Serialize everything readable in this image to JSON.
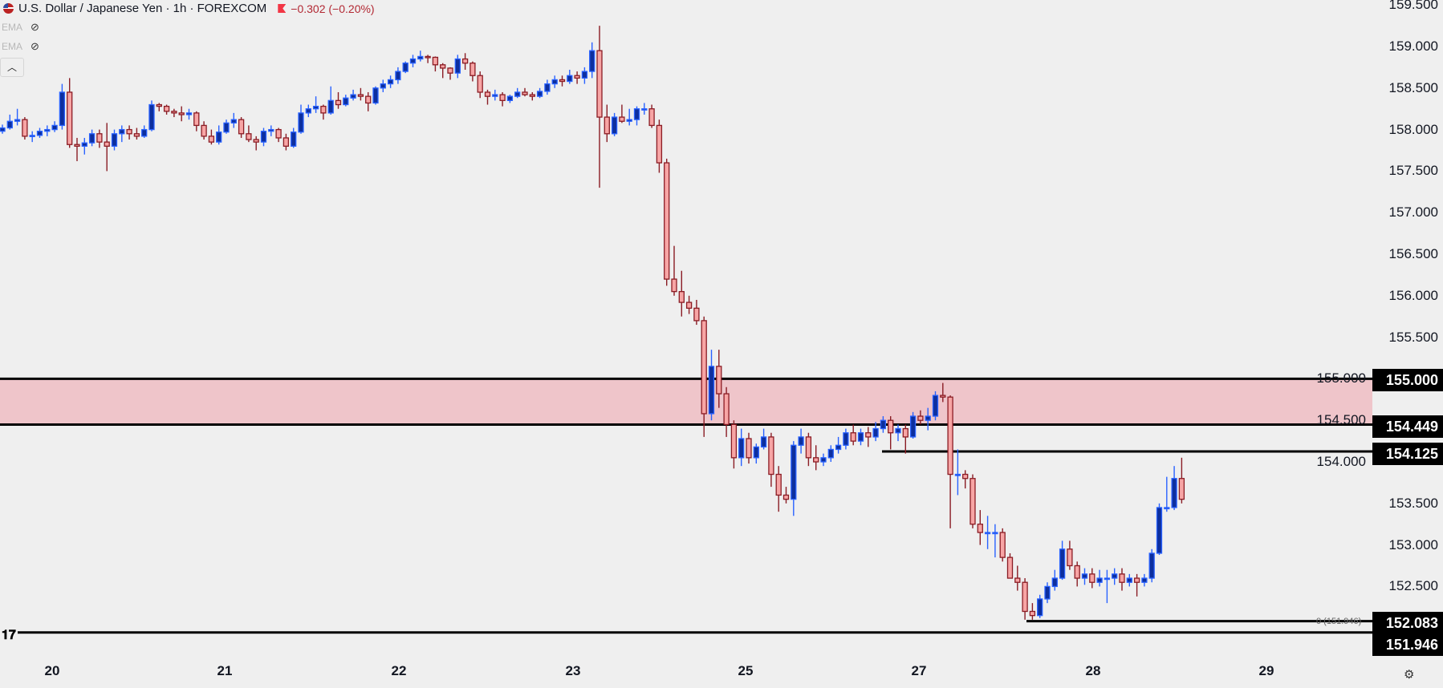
{
  "header": {
    "title": "U.S. Dollar / Japanese Yen · 1h · FOREXCOM",
    "change": "−0.302 (−0.20%)",
    "indicators": [
      {
        "label": "EMA",
        "icon": "eye-off-icon"
      },
      {
        "label": "EMA",
        "icon": "eye-off-icon"
      }
    ],
    "collapse_icon": "chevron-up-icon"
  },
  "colors": {
    "up_fill": "#0d2f9e",
    "up_border": "#2962ff",
    "down_fill": "#f7a5a5",
    "down_border": "#8a1c24",
    "zone": "#efc5ca",
    "background": "#efefef"
  },
  "chart_data": {
    "type": "candlestick",
    "symbol": "USDJPY",
    "timeframe": "1h",
    "ylim": [
      151.9,
      159.6
    ],
    "y_ticks": [
      "159.500",
      "159.000",
      "158.500",
      "158.000",
      "157.500",
      "157.000",
      "156.500",
      "156.000",
      "155.500",
      "155.000",
      "154.500",
      "154.000",
      "153.500",
      "153.000",
      "152.500"
    ],
    "x_ticks": [
      "20",
      "21",
      "22",
      "23",
      "25",
      "27",
      "28",
      "29"
    ],
    "zone": {
      "from": 154.449,
      "to": 155.0
    },
    "levels": [
      {
        "label": "155.000",
        "value": 155.0
      },
      {
        "label": "154.449",
        "value": 154.449
      },
      {
        "label": "154.125",
        "value": 154.125
      },
      {
        "label": "152.083",
        "value": 152.083
      },
      {
        "label": "151.946",
        "value": 151.946
      }
    ],
    "fib_label": "0 (151.946)",
    "ohlc": [
      [
        157.98,
        158.06,
        157.95,
        158.02
      ],
      [
        158.02,
        158.18,
        158.0,
        158.1
      ],
      [
        158.1,
        158.25,
        158.05,
        158.12
      ],
      [
        158.12,
        158.15,
        157.88,
        157.92
      ],
      [
        157.92,
        157.98,
        157.85,
        157.93
      ],
      [
        157.93,
        158.02,
        157.9,
        157.98
      ],
      [
        157.98,
        158.05,
        157.92,
        158.0
      ],
      [
        158.0,
        158.1,
        157.97,
        158.05
      ],
      [
        158.05,
        158.55,
        158.0,
        158.45
      ],
      [
        158.45,
        158.62,
        157.78,
        157.82
      ],
      [
        157.82,
        157.9,
        157.62,
        157.8
      ],
      [
        157.8,
        157.9,
        157.7,
        157.84
      ],
      [
        157.84,
        158.0,
        157.8,
        157.95
      ],
      [
        157.95,
        158.0,
        157.78,
        157.85
      ],
      [
        157.85,
        158.08,
        157.5,
        157.8
      ],
      [
        157.8,
        158.0,
        157.75,
        157.95
      ],
      [
        157.95,
        158.05,
        157.85,
        158.0
      ],
      [
        158.0,
        158.05,
        157.88,
        157.95
      ],
      [
        157.95,
        158.02,
        157.88,
        157.92
      ],
      [
        157.92,
        158.05,
        157.9,
        158.0
      ],
      [
        158.0,
        158.35,
        157.98,
        158.3
      ],
      [
        158.3,
        158.32,
        158.22,
        158.28
      ],
      [
        158.28,
        158.3,
        158.18,
        158.22
      ],
      [
        158.22,
        158.25,
        158.15,
        158.2
      ],
      [
        158.2,
        158.28,
        158.1,
        158.18
      ],
      [
        158.18,
        158.25,
        158.12,
        158.2
      ],
      [
        158.2,
        158.22,
        157.98,
        158.05
      ],
      [
        158.05,
        158.1,
        157.88,
        157.92
      ],
      [
        157.92,
        158.0,
        157.82,
        157.85
      ],
      [
        157.85,
        158.05,
        157.82,
        157.97
      ],
      [
        157.97,
        158.12,
        157.95,
        158.08
      ],
      [
        158.08,
        158.2,
        158.02,
        158.12
      ],
      [
        158.12,
        158.15,
        157.9,
        157.95
      ],
      [
        157.95,
        158.05,
        157.85,
        157.88
      ],
      [
        157.88,
        157.92,
        157.75,
        157.85
      ],
      [
        157.85,
        158.02,
        157.8,
        157.98
      ],
      [
        157.98,
        158.05,
        157.92,
        158.0
      ],
      [
        158.0,
        158.02,
        157.85,
        157.9
      ],
      [
        157.9,
        157.95,
        157.75,
        157.8
      ],
      [
        157.8,
        158.02,
        157.78,
        157.97
      ],
      [
        157.97,
        158.3,
        157.95,
        158.2
      ],
      [
        158.2,
        158.3,
        158.15,
        158.25
      ],
      [
        158.25,
        158.4,
        158.2,
        158.28
      ],
      [
        158.28,
        158.3,
        158.12,
        158.2
      ],
      [
        158.2,
        158.52,
        158.18,
        158.35
      ],
      [
        158.35,
        158.45,
        158.25,
        158.3
      ],
      [
        158.3,
        158.42,
        158.28,
        158.38
      ],
      [
        158.38,
        158.48,
        158.35,
        158.42
      ],
      [
        158.42,
        158.5,
        158.35,
        158.4
      ],
      [
        158.4,
        158.45,
        158.22,
        158.32
      ],
      [
        158.32,
        158.52,
        158.3,
        158.5
      ],
      [
        158.5,
        158.6,
        158.45,
        158.55
      ],
      [
        158.55,
        158.65,
        158.5,
        158.6
      ],
      [
        158.6,
        158.75,
        158.55,
        158.7
      ],
      [
        158.7,
        158.82,
        158.68,
        158.8
      ],
      [
        158.8,
        158.9,
        158.75,
        158.85
      ],
      [
        158.85,
        158.95,
        158.82,
        158.88
      ],
      [
        158.88,
        158.9,
        158.8,
        158.87
      ],
      [
        158.87,
        158.88,
        158.7,
        158.78
      ],
      [
        158.78,
        158.8,
        158.62,
        158.74
      ],
      [
        158.74,
        158.75,
        158.6,
        158.68
      ],
      [
        158.68,
        158.9,
        158.62,
        158.85
      ],
      [
        158.85,
        158.92,
        158.72,
        158.8
      ],
      [
        158.8,
        158.82,
        158.58,
        158.65
      ],
      [
        158.65,
        158.7,
        158.38,
        158.45
      ],
      [
        158.45,
        158.48,
        158.3,
        158.4
      ],
      [
        158.4,
        158.48,
        158.35,
        158.42
      ],
      [
        158.42,
        158.45,
        158.28,
        158.35
      ],
      [
        158.35,
        158.42,
        158.32,
        158.4
      ],
      [
        158.4,
        158.5,
        158.38,
        158.45
      ],
      [
        158.45,
        158.5,
        158.4,
        158.42
      ],
      [
        158.42,
        158.45,
        158.35,
        158.4
      ],
      [
        158.4,
        158.5,
        158.38,
        158.46
      ],
      [
        158.46,
        158.6,
        158.42,
        158.55
      ],
      [
        158.55,
        158.65,
        158.5,
        158.6
      ],
      [
        158.6,
        158.65,
        158.52,
        158.58
      ],
      [
        158.58,
        158.72,
        158.55,
        158.65
      ],
      [
        158.65,
        158.7,
        158.55,
        158.62
      ],
      [
        158.62,
        158.75,
        158.55,
        158.7
      ],
      [
        158.7,
        159.05,
        158.62,
        158.95
      ],
      [
        158.95,
        159.25,
        157.3,
        158.15
      ],
      [
        158.15,
        158.3,
        157.85,
        157.95
      ],
      [
        157.95,
        158.2,
        157.92,
        158.15
      ],
      [
        158.15,
        158.3,
        158.08,
        158.1
      ],
      [
        158.1,
        158.25,
        158.05,
        158.12
      ],
      [
        158.12,
        158.28,
        158.05,
        158.25
      ],
      [
        158.25,
        158.32,
        158.18,
        158.25
      ],
      [
        158.25,
        158.3,
        158.02,
        158.05
      ],
      [
        158.05,
        158.12,
        157.48,
        157.6
      ],
      [
        157.6,
        157.65,
        156.12,
        156.2
      ],
      [
        156.2,
        156.6,
        156.0,
        156.05
      ],
      [
        156.05,
        156.3,
        155.75,
        155.92
      ],
      [
        155.92,
        156.0,
        155.78,
        155.85
      ],
      [
        155.85,
        155.95,
        155.65,
        155.7
      ],
      [
        155.7,
        155.75,
        154.3,
        154.58
      ],
      [
        154.58,
        155.35,
        154.5,
        155.15
      ],
      [
        155.15,
        155.35,
        154.65,
        154.82
      ],
      [
        154.82,
        154.9,
        154.3,
        154.45
      ],
      [
        154.45,
        154.5,
        153.92,
        154.05
      ],
      [
        154.05,
        154.4,
        153.95,
        154.28
      ],
      [
        154.28,
        154.35,
        153.98,
        154.05
      ],
      [
        154.05,
        154.22,
        153.98,
        154.18
      ],
      [
        154.18,
        154.4,
        154.15,
        154.3
      ],
      [
        154.3,
        154.35,
        153.7,
        153.85
      ],
      [
        153.85,
        153.95,
        153.4,
        153.6
      ],
      [
        153.6,
        153.7,
        153.5,
        153.55
      ],
      [
        153.55,
        154.25,
        153.35,
        154.2
      ],
      [
        154.2,
        154.4,
        154.1,
        154.3
      ],
      [
        154.3,
        154.35,
        153.95,
        154.05
      ],
      [
        154.05,
        154.2,
        153.9,
        154.0
      ],
      [
        154.0,
        154.1,
        153.95,
        154.05
      ],
      [
        154.05,
        154.2,
        154.0,
        154.15
      ],
      [
        154.15,
        154.3,
        154.1,
        154.2
      ],
      [
        154.2,
        154.4,
        154.15,
        154.35
      ],
      [
        154.35,
        154.45,
        154.2,
        154.25
      ],
      [
        154.25,
        154.4,
        154.2,
        154.35
      ],
      [
        154.35,
        154.42,
        154.18,
        154.3
      ],
      [
        154.3,
        154.48,
        154.25,
        154.4
      ],
      [
        154.4,
        154.55,
        154.35,
        154.5
      ],
      [
        154.5,
        154.55,
        154.15,
        154.35
      ],
      [
        154.35,
        154.45,
        154.25,
        154.4
      ],
      [
        154.4,
        154.45,
        154.1,
        154.3
      ],
      [
        154.3,
        154.6,
        154.28,
        154.55
      ],
      [
        154.55,
        154.62,
        154.45,
        154.5
      ],
      [
        154.5,
        154.65,
        154.38,
        154.55
      ],
      [
        154.55,
        154.85,
        154.5,
        154.8
      ],
      [
        154.8,
        154.95,
        154.72,
        154.78
      ],
      [
        154.78,
        154.8,
        153.2,
        153.85
      ],
      [
        153.85,
        154.15,
        153.6,
        153.85
      ],
      [
        153.85,
        153.9,
        153.68,
        153.8
      ],
      [
        153.8,
        153.85,
        153.2,
        153.25
      ],
      [
        153.25,
        153.42,
        153.0,
        153.15
      ],
      [
        153.15,
        153.35,
        152.95,
        153.15
      ],
      [
        153.15,
        153.25,
        152.85,
        153.15
      ],
      [
        153.15,
        153.2,
        152.8,
        152.85
      ],
      [
        152.85,
        152.9,
        152.6,
        152.6
      ],
      [
        152.6,
        152.75,
        152.45,
        152.55
      ],
      [
        152.55,
        152.6,
        152.1,
        152.2
      ],
      [
        152.2,
        152.3,
        152.1,
        152.15
      ],
      [
        152.15,
        152.4,
        152.12,
        152.35
      ],
      [
        152.35,
        152.55,
        152.3,
        152.5
      ],
      [
        152.5,
        152.7,
        152.45,
        152.6
      ],
      [
        152.6,
        153.05,
        152.58,
        152.95
      ],
      [
        152.95,
        153.05,
        152.7,
        152.75
      ],
      [
        152.75,
        152.8,
        152.5,
        152.6
      ],
      [
        152.6,
        152.72,
        152.52,
        152.65
      ],
      [
        152.65,
        152.72,
        152.48,
        152.55
      ],
      [
        152.55,
        152.7,
        152.5,
        152.6
      ],
      [
        152.6,
        152.7,
        152.3,
        152.6
      ],
      [
        152.6,
        152.72,
        152.52,
        152.65
      ],
      [
        152.65,
        152.72,
        152.45,
        152.55
      ],
      [
        152.55,
        152.65,
        152.5,
        152.6
      ],
      [
        152.6,
        152.65,
        152.38,
        152.55
      ],
      [
        152.55,
        152.65,
        152.5,
        152.6
      ],
      [
        152.6,
        152.95,
        152.55,
        152.9
      ],
      [
        152.9,
        153.5,
        152.88,
        153.45
      ],
      [
        153.45,
        153.82,
        153.4,
        153.45
      ],
      [
        153.45,
        153.95,
        153.42,
        153.8
      ],
      [
        153.8,
        154.05,
        153.5,
        153.55
      ]
    ]
  },
  "footer": {
    "settings_icon": "gear-icon",
    "logo": "TV"
  }
}
